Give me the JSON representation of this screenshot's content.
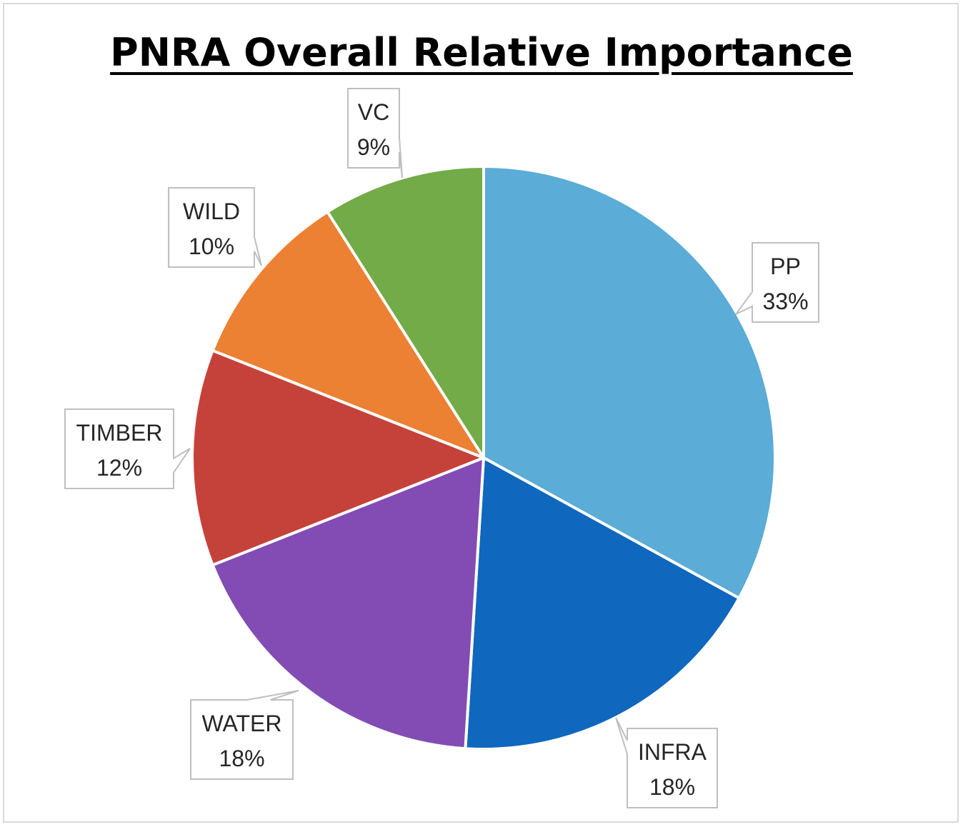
{
  "chart_data": {
    "type": "pie",
    "title": "PNRA Overall Relative Importance",
    "start_angle_deg": 0,
    "direction": "clockwise",
    "slices": [
      {
        "label": "PP",
        "value": 33,
        "display": "33%",
        "color": "#5BACD6"
      },
      {
        "label": "INFRA",
        "value": 18,
        "display": "18%",
        "color": "#0F67BE"
      },
      {
        "label": "WATER",
        "value": 18,
        "display": "18%",
        "color": "#824CB4"
      },
      {
        "label": "TIMBER",
        "value": 12,
        "display": "12%",
        "color": "#C5423A"
      },
      {
        "label": "WILD",
        "value": 10,
        "display": "10%",
        "color": "#EC8033"
      },
      {
        "label": "VC",
        "value": 9,
        "display": "9%",
        "color": "#72AB48"
      }
    ],
    "legend": "none",
    "data_labels": "callouts"
  }
}
